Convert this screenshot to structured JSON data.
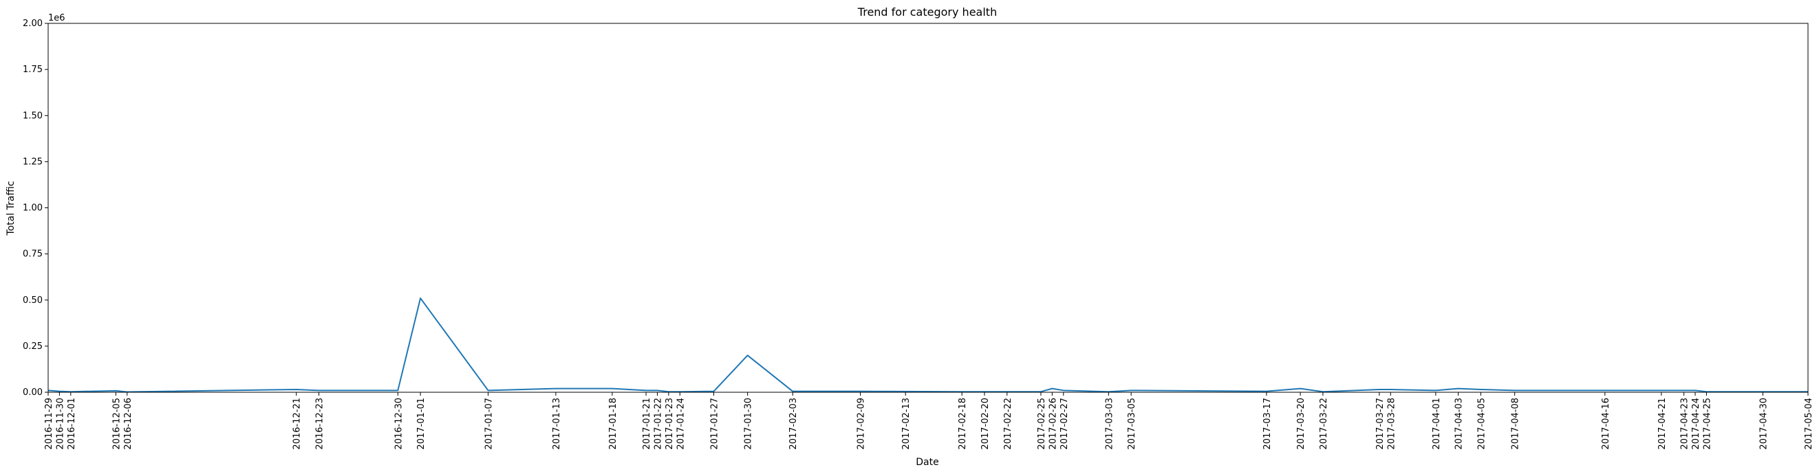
{
  "chart_data": {
    "type": "line",
    "title": "Trend for category health",
    "xlabel": "Date",
    "ylabel": "Total Traffic",
    "y_offset_label": "1e6",
    "ylim": [
      0,
      2000000
    ],
    "yticks": [
      0,
      250000,
      500000,
      750000,
      1000000,
      1250000,
      1500000,
      1750000,
      2000000
    ],
    "ytick_labels": [
      "0.00",
      "0.25",
      "0.50",
      "0.75",
      "1.00",
      "1.25",
      "1.50",
      "1.75",
      "2.00"
    ],
    "xlim": [
      "2016-11-29",
      "2017-05-04"
    ],
    "grid": false,
    "line_color": "#1f77b4",
    "series": [
      {
        "x": [
          "2016-11-29",
          "2016-11-30",
          "2016-12-01",
          "2016-12-05",
          "2016-12-06",
          "2016-12-21",
          "2016-12-23",
          "2016-12-30",
          "2017-01-01",
          "2017-01-07",
          "2017-01-13",
          "2017-01-18",
          "2017-01-21",
          "2017-01-22",
          "2017-01-23",
          "2017-01-24",
          "2017-01-27",
          "2017-01-30",
          "2017-02-03",
          "2017-02-09",
          "2017-02-13",
          "2017-02-18",
          "2017-02-20",
          "2017-02-22",
          "2017-02-25",
          "2017-02-26",
          "2017-02-27",
          "2017-03-03",
          "2017-03-05",
          "2017-03-17",
          "2017-03-20",
          "2017-03-22",
          "2017-03-27",
          "2017-03-28",
          "2017-04-01",
          "2017-04-03",
          "2017-04-05",
          "2017-04-08",
          "2017-04-16",
          "2017-04-21",
          "2017-04-23",
          "2017-04-24",
          "2017-04-25",
          "2017-04-30",
          "2017-05-04"
        ],
        "values": [
          10000,
          5000,
          3000,
          8000,
          2000,
          15000,
          10000,
          10000,
          510000,
          10000,
          20000,
          20000,
          10000,
          10000,
          3000,
          3000,
          5000,
          200000,
          5000,
          5000,
          4000,
          3000,
          3000,
          3000,
          3000,
          20000,
          10000,
          3000,
          10000,
          5000,
          20000,
          3000,
          15000,
          15000,
          10000,
          20000,
          15000,
          10000,
          10000,
          10000,
          10000,
          10000,
          3000,
          3000,
          3000
        ]
      }
    ]
  }
}
